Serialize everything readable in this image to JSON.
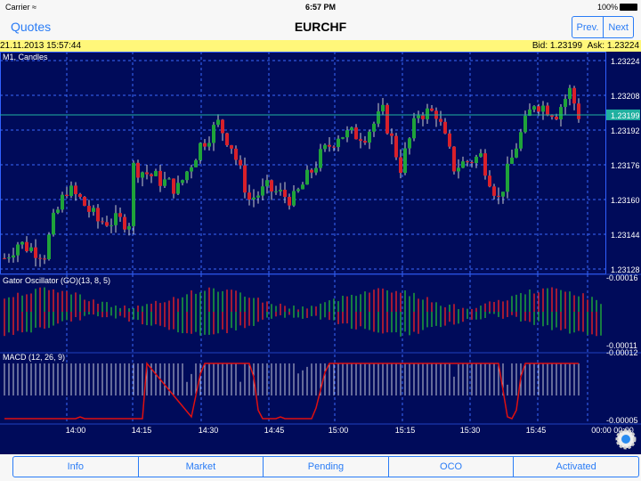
{
  "status": {
    "carrier": "Carrier",
    "time": "6:57 PM",
    "battery": "100%"
  },
  "nav": {
    "back": "Quotes",
    "title": "EURCHF",
    "prev": "Prev.",
    "next": "Next"
  },
  "quote": {
    "datetime": "21.11.2013 15:57:44",
    "bid": "Bid: 1.23199",
    "ask": "Ask: 1.23224"
  },
  "colors": {
    "background": "#000b5a",
    "bull": "#1fa33a",
    "bear": "#d8202a",
    "macd_line": "#e01010",
    "current_line": "#20b0a0"
  },
  "chart_data": [
    {
      "type": "candlestick",
      "title": "M1, Candles",
      "current_price": "1.23199",
      "y_ticks": [
        "1.23224",
        "1.23208",
        "1.23192",
        "1.23176",
        "1.23160",
        "1.23144",
        "1.23128"
      ],
      "ylim": [
        1.23126,
        1.23228
      ],
      "x_ticks": [
        "14:00",
        "14:15",
        "14:30",
        "14:45",
        "15:00",
        "15:15",
        "15:30",
        "15:45",
        "00:00 00:00"
      ],
      "approx_close_path": [
        [
          "13:45",
          1.23133
        ],
        [
          "13:48",
          1.2314
        ],
        [
          "13:54",
          1.23135
        ],
        [
          "13:56",
          1.2315
        ],
        [
          "13:59",
          1.23165
        ],
        [
          "14:02",
          1.2316
        ],
        [
          "14:06",
          1.2315
        ],
        [
          "14:13",
          1.2315
        ],
        [
          "14:14",
          1.23175
        ],
        [
          "14:19",
          1.2317
        ],
        [
          "14:24",
          1.23165
        ],
        [
          "14:29",
          1.23185
        ],
        [
          "14:33",
          1.23195
        ],
        [
          "14:36",
          1.23185
        ],
        [
          "14:40",
          1.2316
        ],
        [
          "14:44",
          1.23165
        ],
        [
          "14:50",
          1.2316
        ],
        [
          "14:56",
          1.2318
        ],
        [
          "15:00",
          1.2319
        ],
        [
          "15:06",
          1.2319
        ],
        [
          "15:10",
          1.232
        ],
        [
          "15:14",
          1.23175
        ],
        [
          "15:18",
          1.232
        ],
        [
          "15:22",
          1.232
        ],
        [
          "15:26",
          1.23175
        ],
        [
          "15:32",
          1.2318
        ],
        [
          "15:36",
          1.2316
        ],
        [
          "15:40",
          1.23185
        ],
        [
          "15:44",
          1.23205
        ],
        [
          "15:49",
          1.232
        ],
        [
          "15:52",
          1.2321
        ],
        [
          "15:54",
          1.23199
        ]
      ]
    },
    {
      "type": "bar",
      "title": "Gator Oscillator (GO)(13, 8, 5)",
      "y_ticks": [
        "-0.00016",
        "-0.00011"
      ]
    },
    {
      "type": "bar+line",
      "title": "MACD (12, 26, 9)",
      "y_ticks": [
        "-0.00012",
        "-0.00005"
      ]
    }
  ],
  "tabs": [
    "Info",
    "Market",
    "Pending",
    "OCO",
    "Activated"
  ],
  "icons": {
    "wifi": "wifi-icon",
    "battery": "battery-icon",
    "settings": "gear-icon"
  }
}
